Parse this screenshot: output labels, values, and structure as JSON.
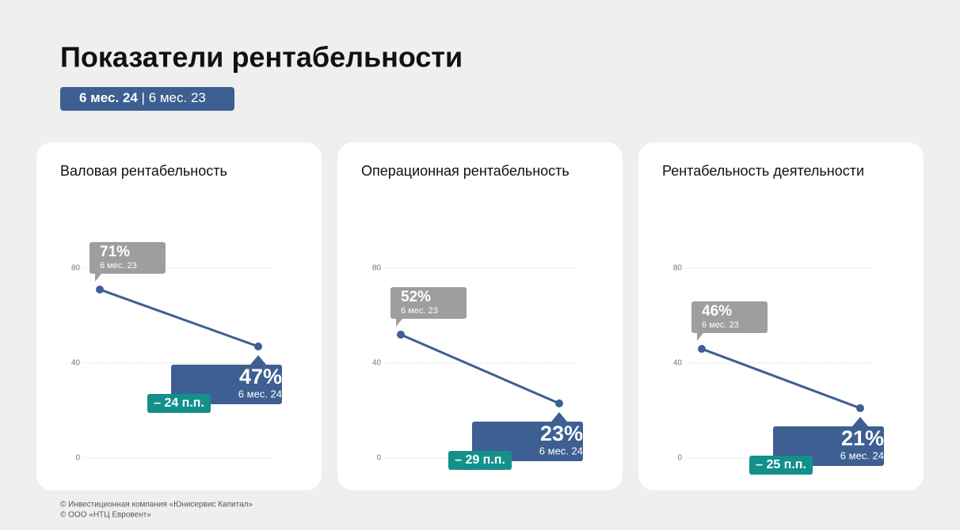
{
  "header": {
    "title": "Показатели рентабельности",
    "tag_current": "6 мес. 24",
    "tag_separator": "|",
    "tag_previous": "6 мес. 23"
  },
  "chart_data": [
    {
      "type": "line",
      "title": "Валовая рентабельность",
      "categories": [
        "6 мес. 23",
        "6 мес. 24"
      ],
      "values": [
        71,
        47
      ],
      "value_labels": [
        "71%",
        "47%"
      ],
      "annotation": "– 24 п.п.",
      "ylim": [
        0,
        80
      ],
      "yticks": [
        0,
        40,
        80
      ],
      "grid": true,
      "color": "#3d5f91",
      "previous_color": "#9e9e9e",
      "annotation_color": "#13908a"
    },
    {
      "type": "line",
      "title": "Операционная рентабельность",
      "categories": [
        "6 мес. 23",
        "6 мес. 24"
      ],
      "values": [
        52,
        23
      ],
      "value_labels": [
        "52%",
        "23%"
      ],
      "annotation": "– 29 п.п.",
      "ylim": [
        0,
        80
      ],
      "yticks": [
        0,
        40,
        80
      ],
      "grid": true,
      "color": "#3d5f91",
      "previous_color": "#9e9e9e",
      "annotation_color": "#13908a"
    },
    {
      "type": "line",
      "title": "Рентабельность деятельности",
      "categories": [
        "6 мес. 23",
        "6 мес. 24"
      ],
      "values": [
        46,
        21
      ],
      "value_labels": [
        "46%",
        "21%"
      ],
      "annotation": "– 25 п.п.",
      "ylim": [
        0,
        80
      ],
      "yticks": [
        0,
        40,
        80
      ],
      "grid": true,
      "color": "#3d5f91",
      "previous_color": "#9e9e9e",
      "annotation_color": "#13908a"
    }
  ],
  "footer": [
    "© Инвестиционная компания «Юнисервис Капитал»",
    "© ООО «НТЦ Евровент»"
  ]
}
